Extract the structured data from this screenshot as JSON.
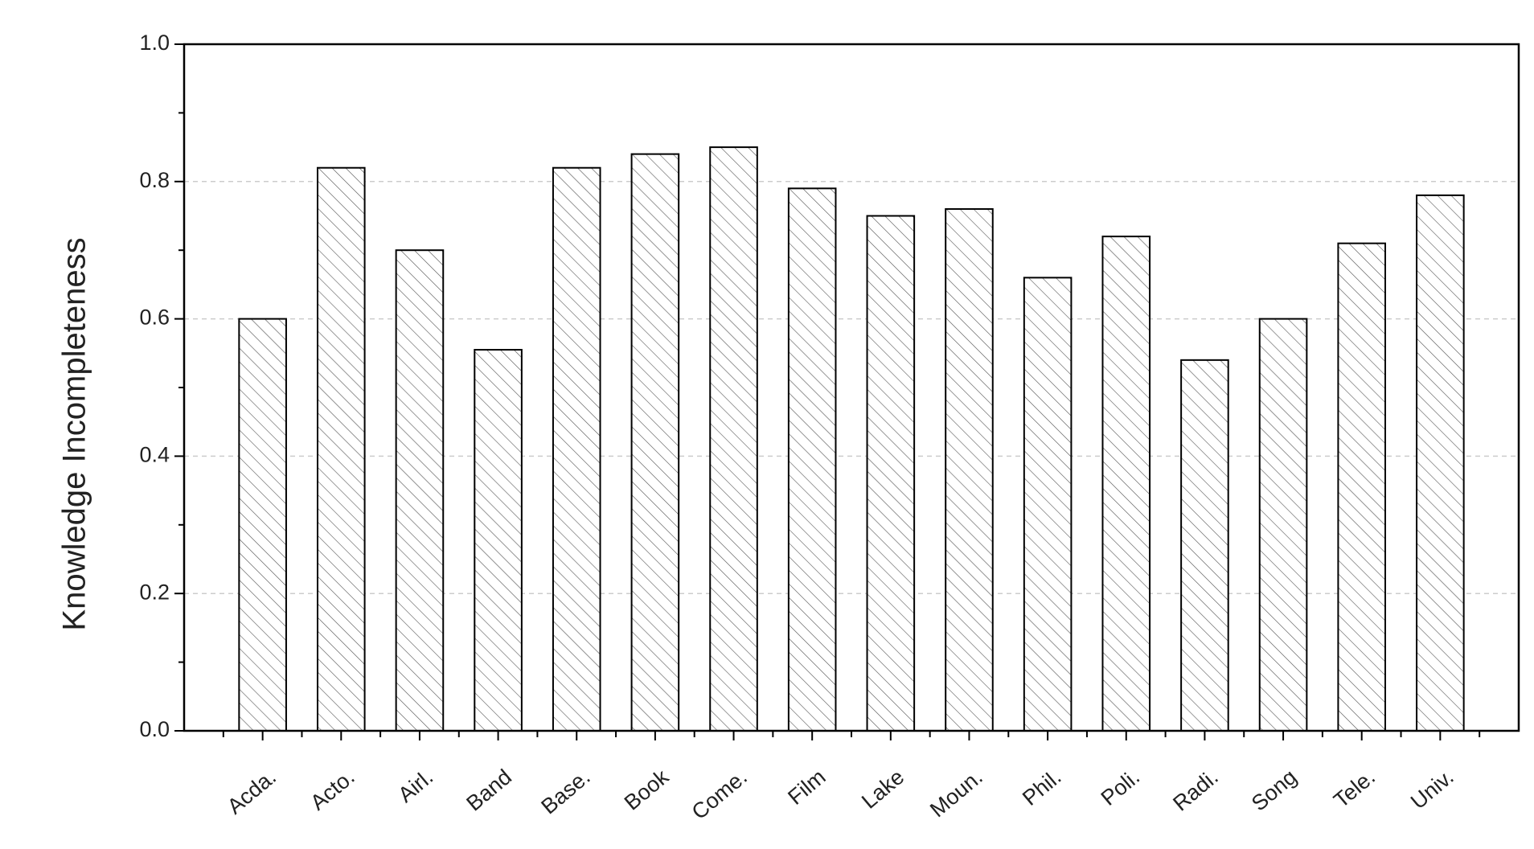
{
  "chart_data": {
    "type": "bar",
    "y_label": "Knowledge Incompleteness",
    "categories": [
      "Acda.",
      "Acto.",
      "Airl.",
      "Band",
      "Base.",
      "Book",
      "Come.",
      "Film",
      "Lake",
      "Moun.",
      "Phil.",
      "Poli.",
      "Radi.",
      "Song",
      "Tele.",
      "Univ."
    ],
    "values": [
      0.6,
      0.82,
      0.7,
      0.555,
      0.82,
      0.84,
      0.85,
      0.79,
      0.75,
      0.76,
      0.66,
      0.72,
      0.54,
      0.6,
      0.71,
      0.78
    ],
    "color": "#ffffff",
    "hatch": true,
    "ylim": [
      0,
      1.0
    ],
    "yticks": [
      {
        "value": 0,
        "label": "0.0"
      },
      0.2,
      0.4,
      0.6,
      0.8,
      {
        "value": 1.0,
        "label": "1.0"
      }
    ],
    "grid": true
  }
}
